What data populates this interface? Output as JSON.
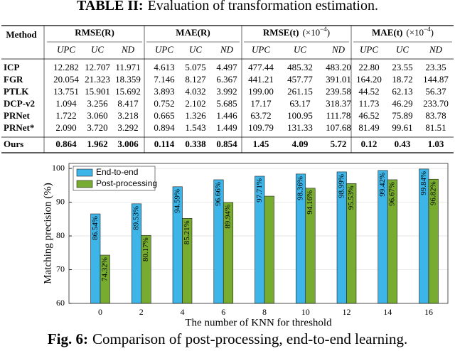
{
  "table": {
    "title_label": "TABLE II:",
    "title_text": "Evaluation of transformation estimation.",
    "method_header": "Method",
    "groups": [
      {
        "label": "RMSE(R)"
      },
      {
        "label": "MAE(R)"
      },
      {
        "label": "RMSE(t)",
        "unit_base": "(×10",
        "unit_exp": "−4",
        "unit_close": ")"
      },
      {
        "label": "MAE(t)",
        "unit_base": "(×10",
        "unit_exp": "−4",
        "unit_close": ")"
      }
    ],
    "subheaders": [
      "UPC",
      "UC",
      "ND"
    ],
    "rows": [
      [
        "ICP",
        "12.282",
        "12.707",
        "11.971",
        "4.613",
        "5.075",
        "4.497",
        "477.44",
        "485.32",
        "483.20",
        "22.80",
        "23.55",
        "23.35"
      ],
      [
        "FGR",
        "20.054",
        "21.323",
        "18.359",
        "7.146",
        "8.127",
        "6.367",
        "441.21",
        "457.77",
        "391.01",
        "164.20",
        "18.72",
        "144.87"
      ],
      [
        "PTLK",
        "13.751",
        "15.901",
        "15.692",
        "3.893",
        "4.032",
        "3.992",
        "199.00",
        "261.15",
        "239.58",
        "44.52",
        "62.13",
        "56.37"
      ],
      [
        "DCP-v2",
        "1.094",
        "3.256",
        "8.417",
        "0.752",
        "2.102",
        "5.685",
        "17.17",
        "63.17",
        "318.37",
        "11.73",
        "46.29",
        "233.70"
      ],
      [
        "PRNet",
        "1.722",
        "3.060",
        "3.218",
        "0.665",
        "1.326",
        "1.446",
        "63.72",
        "100.95",
        "111.78",
        "46.52",
        "75.89",
        "83.78"
      ],
      [
        "PRNet*",
        "2.090",
        "3.720",
        "3.292",
        "0.894",
        "1.543",
        "1.449",
        "109.79",
        "131.33",
        "107.68",
        "81.49",
        "99.61",
        "81.51"
      ]
    ],
    "ours_row": [
      "Ours",
      "0.864",
      "1.962",
      "3.006",
      "0.114",
      "0.338",
      "0.854",
      "1.45",
      "4.09",
      "5.72",
      "0.12",
      "0.43",
      "1.03"
    ]
  },
  "chart_data": {
    "type": "bar",
    "x_label": "The number of KNN for threshold",
    "y_label": "Matching precision (%)",
    "categories": [
      "0",
      "2",
      "4",
      "6",
      "8",
      "10",
      "12",
      "14",
      "16"
    ],
    "series": [
      {
        "name": "End-to-end",
        "color": "#3db5e8",
        "values": [
          86.54,
          89.53,
          94.59,
          96.66,
          97.71,
          98.36,
          98.99,
          99.42,
          99.84
        ],
        "value_labels": [
          "86.54%",
          "89.53%",
          "94.59%",
          "96.66%",
          "97.71%",
          "98.36%",
          "98.99%",
          "99.42%",
          "99.84%"
        ]
      },
      {
        "name": "Post-processing",
        "color": "#77ac30",
        "values": [
          74.32,
          80.17,
          85.21,
          89.94,
          91.8,
          94.16,
          95.53,
          96.67,
          96.82
        ],
        "value_labels": [
          "74.32%",
          "80.17%",
          "85.21%",
          "89.94%",
          null,
          "94.16%",
          "95.53%",
          "96.67%",
          "96.82%"
        ]
      }
    ],
    "ylim": [
      60,
      101.5
    ],
    "yticks": [
      60,
      70,
      80,
      90,
      100
    ],
    "grid": true,
    "legend": "top-left"
  },
  "figure": {
    "label": "Fig. 6:",
    "text": "Comparison of post-processing, end-to-end learning."
  }
}
